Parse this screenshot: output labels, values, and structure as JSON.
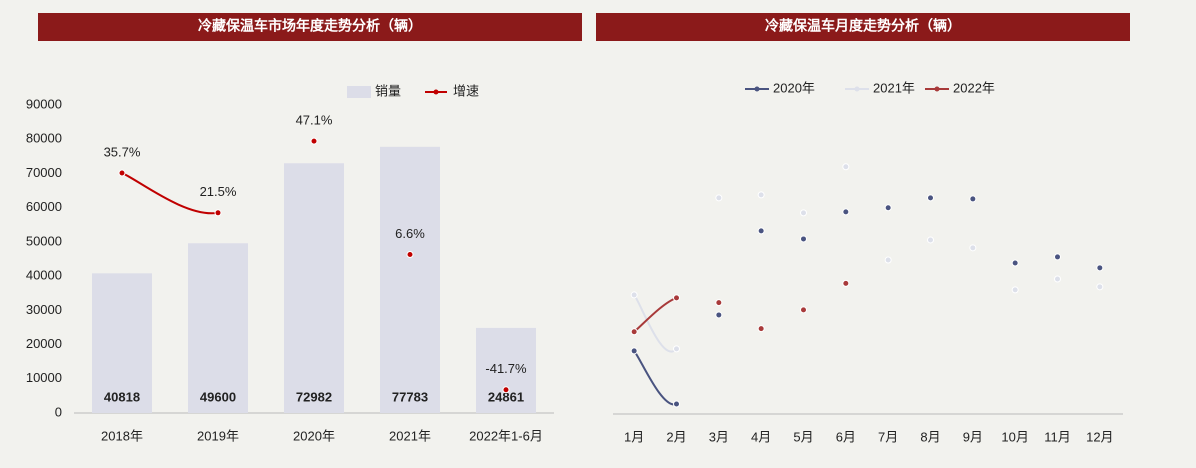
{
  "chart_data": [
    {
      "type": "bar",
      "title": "冷藏保温车市场年度走势分析（辆）",
      "categories": [
        "2018年",
        "2019年",
        "2020年",
        "2021年",
        "2022年1-6月"
      ],
      "ylim": [
        0,
        90000
      ],
      "yticks": [
        0,
        10000,
        20000,
        30000,
        40000,
        50000,
        60000,
        70000,
        80000,
        90000
      ],
      "y2lim": [
        -50,
        60
      ],
      "series": [
        {
          "name": "销量",
          "color": "#dcdde8",
          "values": [
            40818,
            49600,
            72982,
            77783,
            24861
          ]
        },
        {
          "name": "增速",
          "type": "line",
          "axis": "y2",
          "color": "#c00000",
          "values": [
            35.7,
            21.5,
            47.1,
            6.6,
            -41.7
          ],
          "value_labels": [
            "35.7%",
            "21.5%",
            "47.1%",
            "6.6%",
            "-41.7%"
          ]
        }
      ]
    },
    {
      "type": "line",
      "title": "冷藏保温车月度走势分析（辆）",
      "categories": [
        "1月",
        "2月",
        "3月",
        "4月",
        "5月",
        "6月",
        "7月",
        "8月",
        "9月",
        "10月",
        "11月",
        "12月"
      ],
      "ylim": [
        0,
        12000
      ],
      "series": [
        {
          "name": "2020年",
          "color": "#4a5480",
          "values": [
            2490,
            395,
            3910,
            7230,
            6910,
            7980,
            8140,
            8530,
            8490,
            5960,
            6200,
            5770
          ]
        },
        {
          "name": "2021年",
          "color": "#dde0ea",
          "values": [
            4700,
            2570,
            8530,
            8650,
            7940,
            9760,
            6080,
            6870,
            6560,
            4900,
            5330,
            5020
          ]
        },
        {
          "name": "2022年",
          "color": "#a83a3a",
          "show_labels": true,
          "values": [
            3246,
            4583,
            4397,
            3370,
            4109,
            5156,
            null,
            null,
            null,
            null,
            null,
            null
          ]
        }
      ]
    }
  ]
}
